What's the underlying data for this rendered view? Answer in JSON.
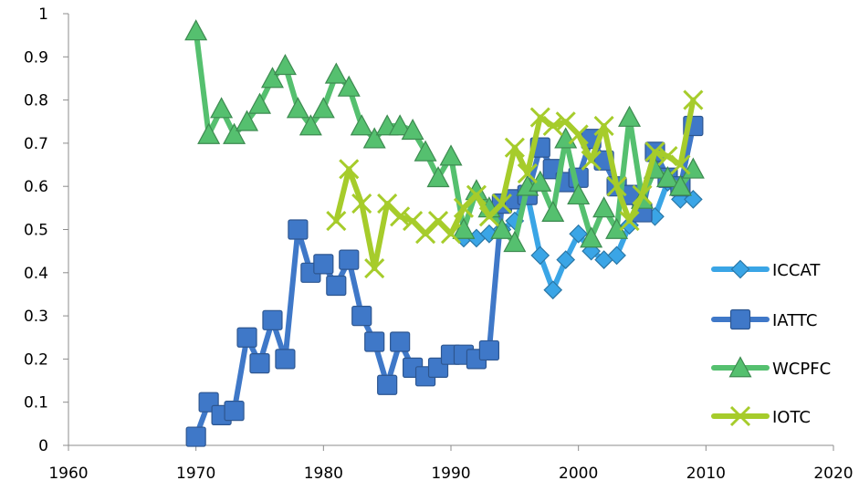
{
  "chart_data": {
    "type": "line",
    "title": "",
    "xlabel": "",
    "ylabel": "",
    "xlim": [
      1960,
      2020
    ],
    "ylim": [
      0,
      1
    ],
    "xticks": [
      1960,
      1970,
      1980,
      1990,
      2000,
      2010,
      2020
    ],
    "yticks": [
      0,
      0.1,
      0.2,
      0.3,
      0.4,
      0.5,
      0.6,
      0.7,
      0.8,
      0.9,
      1
    ],
    "ytick_labels": [
      "0",
      "0.1",
      "0.2",
      "0.3",
      "0.4",
      "0.5",
      "0.6",
      "0.7",
      "0.8",
      "0.9",
      "1"
    ],
    "grid": false,
    "legend_position": "right",
    "series": [
      {
        "name": "ICCAT",
        "marker": "diamond",
        "color": "#3aa5e6",
        "x": [
          1991,
          1992,
          1993,
          1994,
          1995,
          1996,
          1997,
          1998,
          1999,
          2000,
          2001,
          2002,
          2003,
          2004,
          2005,
          2006,
          2007,
          2008,
          2009
        ],
        "y": [
          0.48,
          0.48,
          0.49,
          0.5,
          0.52,
          0.58,
          0.44,
          0.36,
          0.43,
          0.49,
          0.45,
          0.43,
          0.44,
          0.51,
          0.54,
          0.53,
          0.61,
          0.57,
          0.57
        ]
      },
      {
        "name": "IATTC",
        "marker": "square",
        "color": "#3f78c8",
        "x": [
          1970,
          1971,
          1972,
          1973,
          1974,
          1975,
          1976,
          1977,
          1978,
          1979,
          1980,
          1981,
          1982,
          1983,
          1984,
          1985,
          1986,
          1987,
          1988,
          1989,
          1990,
          1991,
          1992,
          1993,
          1994,
          1995,
          1996,
          1997,
          1998,
          1999,
          2000,
          2001,
          2002,
          2003,
          2004,
          2005,
          2006,
          2007,
          2008,
          2009
        ],
        "y": [
          0.02,
          0.1,
          0.07,
          0.08,
          0.25,
          0.19,
          0.29,
          0.2,
          0.5,
          0.4,
          0.42,
          0.37,
          0.43,
          0.3,
          0.24,
          0.14,
          0.24,
          0.18,
          0.16,
          0.18,
          0.21,
          0.21,
          0.2,
          0.22,
          0.56,
          0.57,
          0.58,
          0.69,
          0.64,
          0.61,
          0.62,
          0.71,
          0.66,
          0.6,
          0.58,
          0.54,
          0.68,
          0.62,
          0.6,
          0.74
        ]
      },
      {
        "name": "WCPFC",
        "marker": "triangle",
        "color": "#55c06f",
        "x": [
          1970,
          1971,
          1972,
          1973,
          1974,
          1975,
          1976,
          1977,
          1978,
          1979,
          1980,
          1981,
          1982,
          1983,
          1984,
          1985,
          1986,
          1987,
          1988,
          1989,
          1990,
          1991,
          1992,
          1993,
          1994,
          1995,
          1996,
          1997,
          1998,
          1999,
          2000,
          2001,
          2002,
          2003,
          2004,
          2005,
          2006,
          2007,
          2008,
          2009
        ],
        "y": [
          0.96,
          0.72,
          0.78,
          0.72,
          0.75,
          0.79,
          0.85,
          0.88,
          0.78,
          0.74,
          0.78,
          0.86,
          0.83,
          0.74,
          0.71,
          0.74,
          0.74,
          0.73,
          0.68,
          0.62,
          0.67,
          0.5,
          0.59,
          0.55,
          0.5,
          0.47,
          0.6,
          0.61,
          0.54,
          0.71,
          0.58,
          0.48,
          0.55,
          0.5,
          0.76,
          0.57,
          0.64,
          0.62,
          0.6,
          0.64
        ]
      },
      {
        "name": "IOTC",
        "marker": "x",
        "color": "#a6cc2b",
        "x": [
          1981,
          1982,
          1983,
          1984,
          1985,
          1986,
          1987,
          1988,
          1989,
          1990,
          1991,
          1992,
          1993,
          1994,
          1995,
          1996,
          1997,
          1998,
          1999,
          2000,
          2001,
          2002,
          2003,
          2004,
          2005,
          2006,
          2007,
          2008,
          2009
        ],
        "y": [
          0.52,
          0.64,
          0.56,
          0.41,
          0.56,
          0.53,
          0.52,
          0.49,
          0.52,
          0.49,
          0.55,
          0.58,
          0.53,
          0.56,
          0.69,
          0.63,
          0.76,
          0.74,
          0.75,
          0.72,
          0.66,
          0.74,
          0.6,
          0.52,
          0.58,
          0.68,
          0.67,
          0.65,
          0.8
        ]
      }
    ]
  }
}
